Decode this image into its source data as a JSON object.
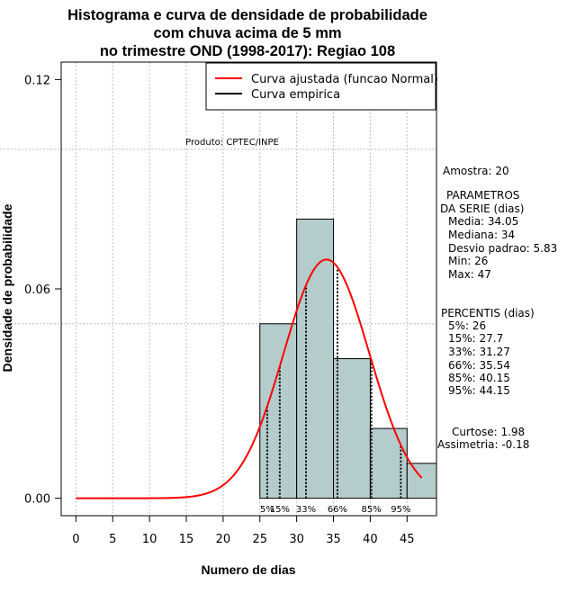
{
  "chart_data": {
    "type": "histogram",
    "title_lines": [
      "Histograma e curva de densidade de probabilidade",
      "com chuva acima de 5 mm",
      "no trimestre OND (1998-2017): Regiao 108"
    ],
    "xlabel": "Numero de dias",
    "ylabel": "Densidade de probabilidade",
    "xlim": [
      -2,
      49
    ],
    "ylim": [
      -0.005,
      0.125
    ],
    "x_ticks": [
      0,
      5,
      10,
      15,
      20,
      25,
      30,
      35,
      40,
      45
    ],
    "y_ticks": [
      0.0,
      0.06,
      0.12
    ],
    "y_tick_labels": [
      "0.00",
      "0.06",
      "0.12"
    ],
    "grid_y": [
      0.05,
      0.1
    ],
    "bins": [
      {
        "x0": 25,
        "x1": 30,
        "density": 0.05
      },
      {
        "x0": 30,
        "x1": 35,
        "density": 0.08
      },
      {
        "x0": 35,
        "x1": 40,
        "density": 0.04
      },
      {
        "x0": 40,
        "x1": 45,
        "density": 0.02
      },
      {
        "x0": 45,
        "x1": 50,
        "density": 0.01
      }
    ],
    "normal_curve": {
      "mean": 34.05,
      "sd": 5.83,
      "x_from": 0,
      "x_to": 47
    },
    "percentile_lines": [
      {
        "x": 26,
        "label": "5%"
      },
      {
        "x": 27.7,
        "label": "15%"
      },
      {
        "x": 31.27,
        "label": "33%"
      },
      {
        "x": 35.54,
        "label": "66%"
      },
      {
        "x": 40.15,
        "label": "85%"
      },
      {
        "x": 44.15,
        "label": "95%"
      }
    ],
    "legend": [
      {
        "label": "Curva ajustada (funcao Normal)",
        "color": "#ff0000"
      },
      {
        "label": "Curva empirica",
        "color": "#000000"
      }
    ],
    "legend_position": "top-right",
    "product_label": "Produto: CPTEC/INPE"
  },
  "side_panel": {
    "sample": "Amostra: 20",
    "params_title_1": "PARAMETROS",
    "params_title_2": "DA SERIE (dias)",
    "params": [
      "Media: 34.05",
      "Mediana: 34",
      "Desvio padrao: 5.83",
      "Min: 26",
      "Max: 47"
    ],
    "percentis_title": "PERCENTIS (dias)",
    "percentis": [
      "5%: 26",
      "15%: 27.7",
      "33%: 31.27",
      "66%: 35.54",
      "85%: 40.15",
      "95%: 44.15"
    ],
    "curtose": "Curtose: 1.98",
    "assimetria": "Assimetria: -0.18"
  },
  "colors": {
    "bar_fill": "#b4cccc",
    "curve": "#ff0000",
    "grid": "#bebebe"
  }
}
